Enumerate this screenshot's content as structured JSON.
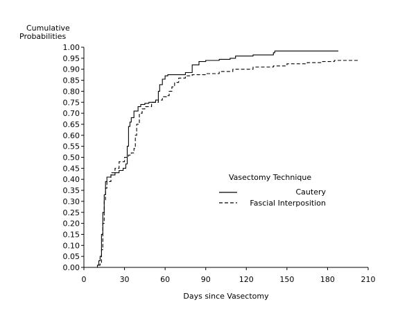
{
  "chart_data": {
    "type": "line",
    "ylabel": "Cumulative Probabilities",
    "xlabel": "Days since Vasectomy",
    "xlim": [
      0,
      210
    ],
    "ylim": [
      0,
      1.0
    ],
    "xticks": [
      0,
      30,
      60,
      90,
      120,
      150,
      180,
      210
    ],
    "yticks": [
      "0.00",
      "0.05",
      "0.10",
      "0.15",
      "0.20",
      "0.25",
      "0.30",
      "0.35",
      "0.40",
      "0.45",
      "0.50",
      "0.55",
      "0.60",
      "0.65",
      "0.70",
      "0.75",
      "0.80",
      "0.85",
      "0.90",
      "0.95",
      "1.00"
    ],
    "grid": false,
    "legend": {
      "title": "Vasectomy Technique",
      "position": "center-right"
    },
    "series": [
      {
        "name": "Cautery",
        "style": "solid",
        "color": "#000000",
        "points": [
          [
            0,
            0.0
          ],
          [
            6,
            0.0
          ],
          [
            10,
            0.01
          ],
          [
            11,
            0.03
          ],
          [
            12,
            0.05
          ],
          [
            13,
            0.15
          ],
          [
            14,
            0.25
          ],
          [
            15,
            0.33
          ],
          [
            16,
            0.39
          ],
          [
            17,
            0.41
          ],
          [
            20,
            0.42
          ],
          [
            23,
            0.43
          ],
          [
            26,
            0.44
          ],
          [
            29,
            0.45
          ],
          [
            31,
            0.47
          ],
          [
            32,
            0.55
          ],
          [
            33,
            0.64
          ],
          [
            34,
            0.66
          ],
          [
            35,
            0.68
          ],
          [
            37,
            0.71
          ],
          [
            40,
            0.73
          ],
          [
            42,
            0.74
          ],
          [
            45,
            0.745
          ],
          [
            48,
            0.75
          ],
          [
            50,
            0.75
          ],
          [
            53,
            0.76
          ],
          [
            55,
            0.8
          ],
          [
            56,
            0.83
          ],
          [
            58,
            0.855
          ],
          [
            60,
            0.87
          ],
          [
            62,
            0.875
          ],
          [
            70,
            0.875
          ],
          [
            75,
            0.885
          ],
          [
            80,
            0.92
          ],
          [
            85,
            0.935
          ],
          [
            90,
            0.94
          ],
          [
            100,
            0.945
          ],
          [
            108,
            0.95
          ],
          [
            112,
            0.96
          ],
          [
            125,
            0.965
          ],
          [
            140,
            0.975
          ],
          [
            141,
            0.983
          ],
          [
            188,
            0.983
          ]
        ]
      },
      {
        "name": "Fascial Interposition",
        "style": "dashed",
        "color": "#000000",
        "points": [
          [
            0,
            0.0
          ],
          [
            8,
            0.0
          ],
          [
            11,
            0.01
          ],
          [
            12,
            0.02
          ],
          [
            13,
            0.08
          ],
          [
            14,
            0.2
          ],
          [
            15,
            0.3
          ],
          [
            16,
            0.36
          ],
          [
            17,
            0.39
          ],
          [
            20,
            0.43
          ],
          [
            23,
            0.45
          ],
          [
            26,
            0.48
          ],
          [
            30,
            0.5
          ],
          [
            33,
            0.51
          ],
          [
            35,
            0.52
          ],
          [
            37,
            0.54
          ],
          [
            38,
            0.6
          ],
          [
            39,
            0.65
          ],
          [
            41,
            0.7
          ],
          [
            43,
            0.72
          ],
          [
            45,
            0.73
          ],
          [
            50,
            0.75
          ],
          [
            55,
            0.76
          ],
          [
            58,
            0.775
          ],
          [
            61,
            0.78
          ],
          [
            63,
            0.8
          ],
          [
            65,
            0.82
          ],
          [
            67,
            0.84
          ],
          [
            70,
            0.86
          ],
          [
            75,
            0.87
          ],
          [
            80,
            0.875
          ],
          [
            90,
            0.88
          ],
          [
            100,
            0.89
          ],
          [
            110,
            0.9
          ],
          [
            125,
            0.91
          ],
          [
            140,
            0.915
          ],
          [
            150,
            0.925
          ],
          [
            165,
            0.93
          ],
          [
            175,
            0.935
          ],
          [
            185,
            0.94
          ],
          [
            203,
            0.943
          ]
        ]
      }
    ]
  }
}
